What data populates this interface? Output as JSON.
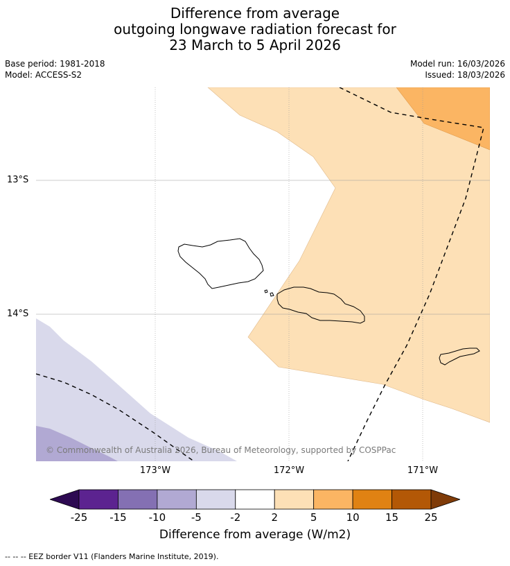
{
  "title": {
    "line1": "Difference from average",
    "line2": "outgoing longwave radiation forecast for",
    "line3": "23 March to 5 April 2026"
  },
  "meta": {
    "base_period": "Base period: 1981-2018",
    "model": "Model: ACCESS-S2",
    "model_run": "Model run: 16/03/2026",
    "issued": "Issued: 18/03/2026"
  },
  "map": {
    "lat_labels": [
      "13°S",
      "14°S"
    ],
    "lon_labels": [
      "173°W",
      "172°W",
      "171°W"
    ],
    "copyright": "© Commonwealth of Australia 2026, Bureau of Meteorology, supported by COSPPac",
    "land_color": "#000000",
    "eez_line_color": "#000000"
  },
  "colorbar": {
    "ticks": [
      "-25",
      "-15",
      "-10",
      "-5",
      "-2",
      "2",
      "5",
      "10",
      "15",
      "25"
    ],
    "colors": [
      "#2d0a52",
      "#5c2390",
      "#8470b3",
      "#b1a9d3",
      "#d9d9eb",
      "#ffffff",
      "#fde0b6",
      "#fbb563",
      "#e08213",
      "#b35806",
      "#7f3b08"
    ],
    "label": "Difference from average (W/m2)"
  },
  "legend": {
    "eez": "--  --  -- EEZ border V11 (Flanders Marine Institute, 2019)."
  }
}
